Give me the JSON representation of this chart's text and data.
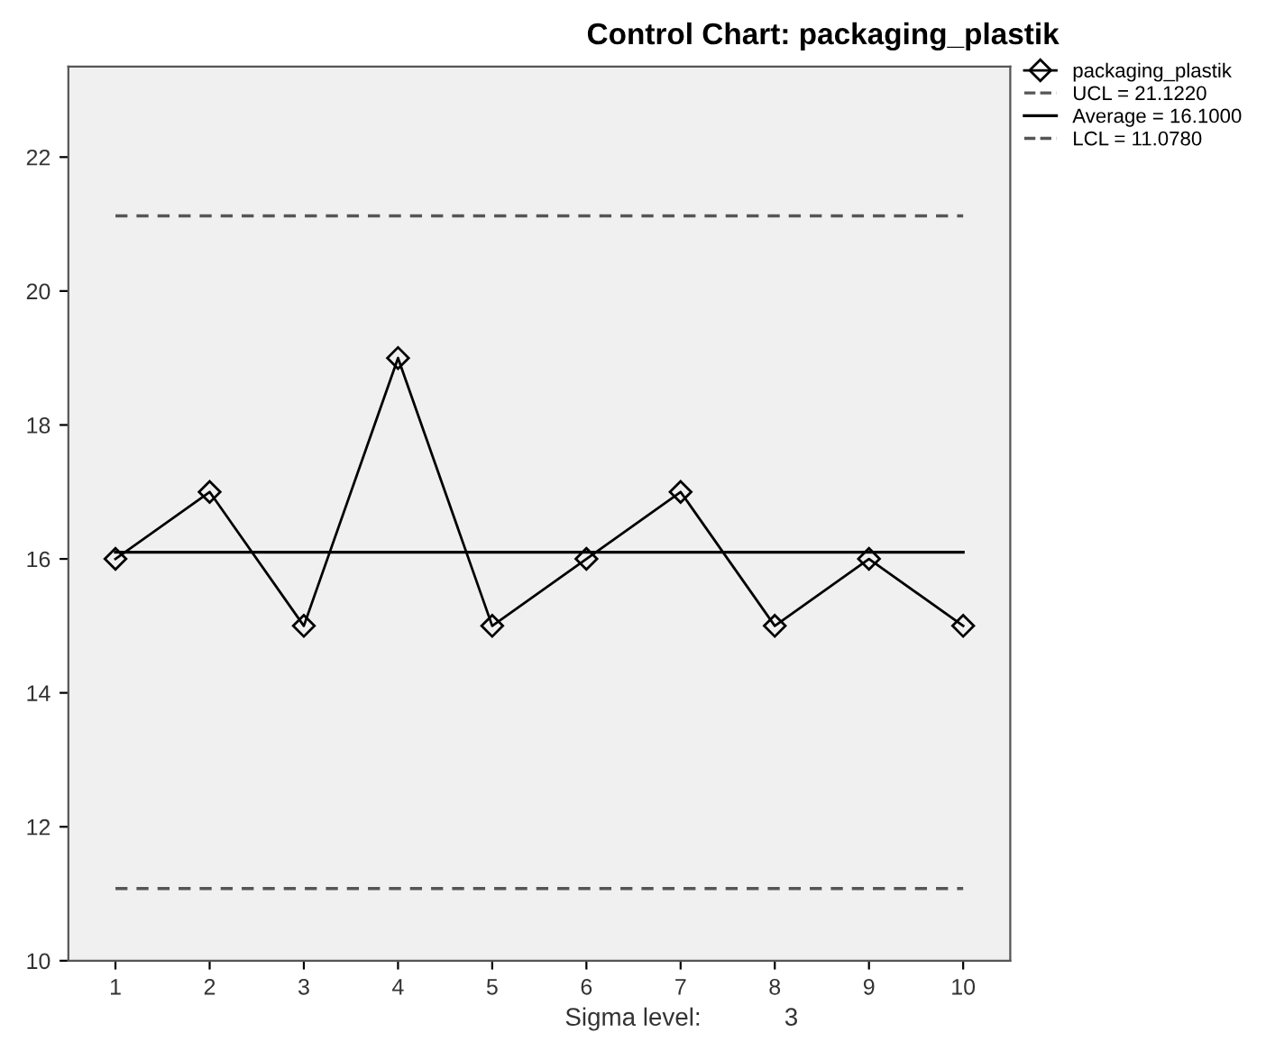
{
  "chart_data": {
    "type": "line",
    "title": "Control Chart: packaging_plastik",
    "categories": [
      "1",
      "2",
      "3",
      "4",
      "5",
      "6",
      "7",
      "8",
      "9",
      "10"
    ],
    "series": [
      {
        "name": "packaging_plastik",
        "color": "#000000",
        "values": [
          16,
          17,
          15,
          19,
          15,
          16,
          17,
          15,
          16,
          15
        ]
      }
    ],
    "ref_lines": [
      {
        "axis": "y",
        "value": 21.122,
        "label": "UCL = 21.1220",
        "line_style": "dashed",
        "color": "#555555"
      },
      {
        "axis": "y",
        "value": 16.1,
        "label": "Average = 16.1000",
        "line_style": "solid",
        "color": "#000000"
      },
      {
        "axis": "y",
        "value": 11.078,
        "label": "LCL = 11.0780",
        "line_style": "dashed",
        "color": "#555555"
      }
    ],
    "ylim": [
      10,
      23.35
    ],
    "yticks": [
      10,
      12,
      14,
      16,
      18,
      20,
      22
    ],
    "annotations": [
      "Sigma level:",
      "3"
    ],
    "marker": "diamond",
    "line_style": "solid",
    "grid": false,
    "legend": "top right"
  }
}
